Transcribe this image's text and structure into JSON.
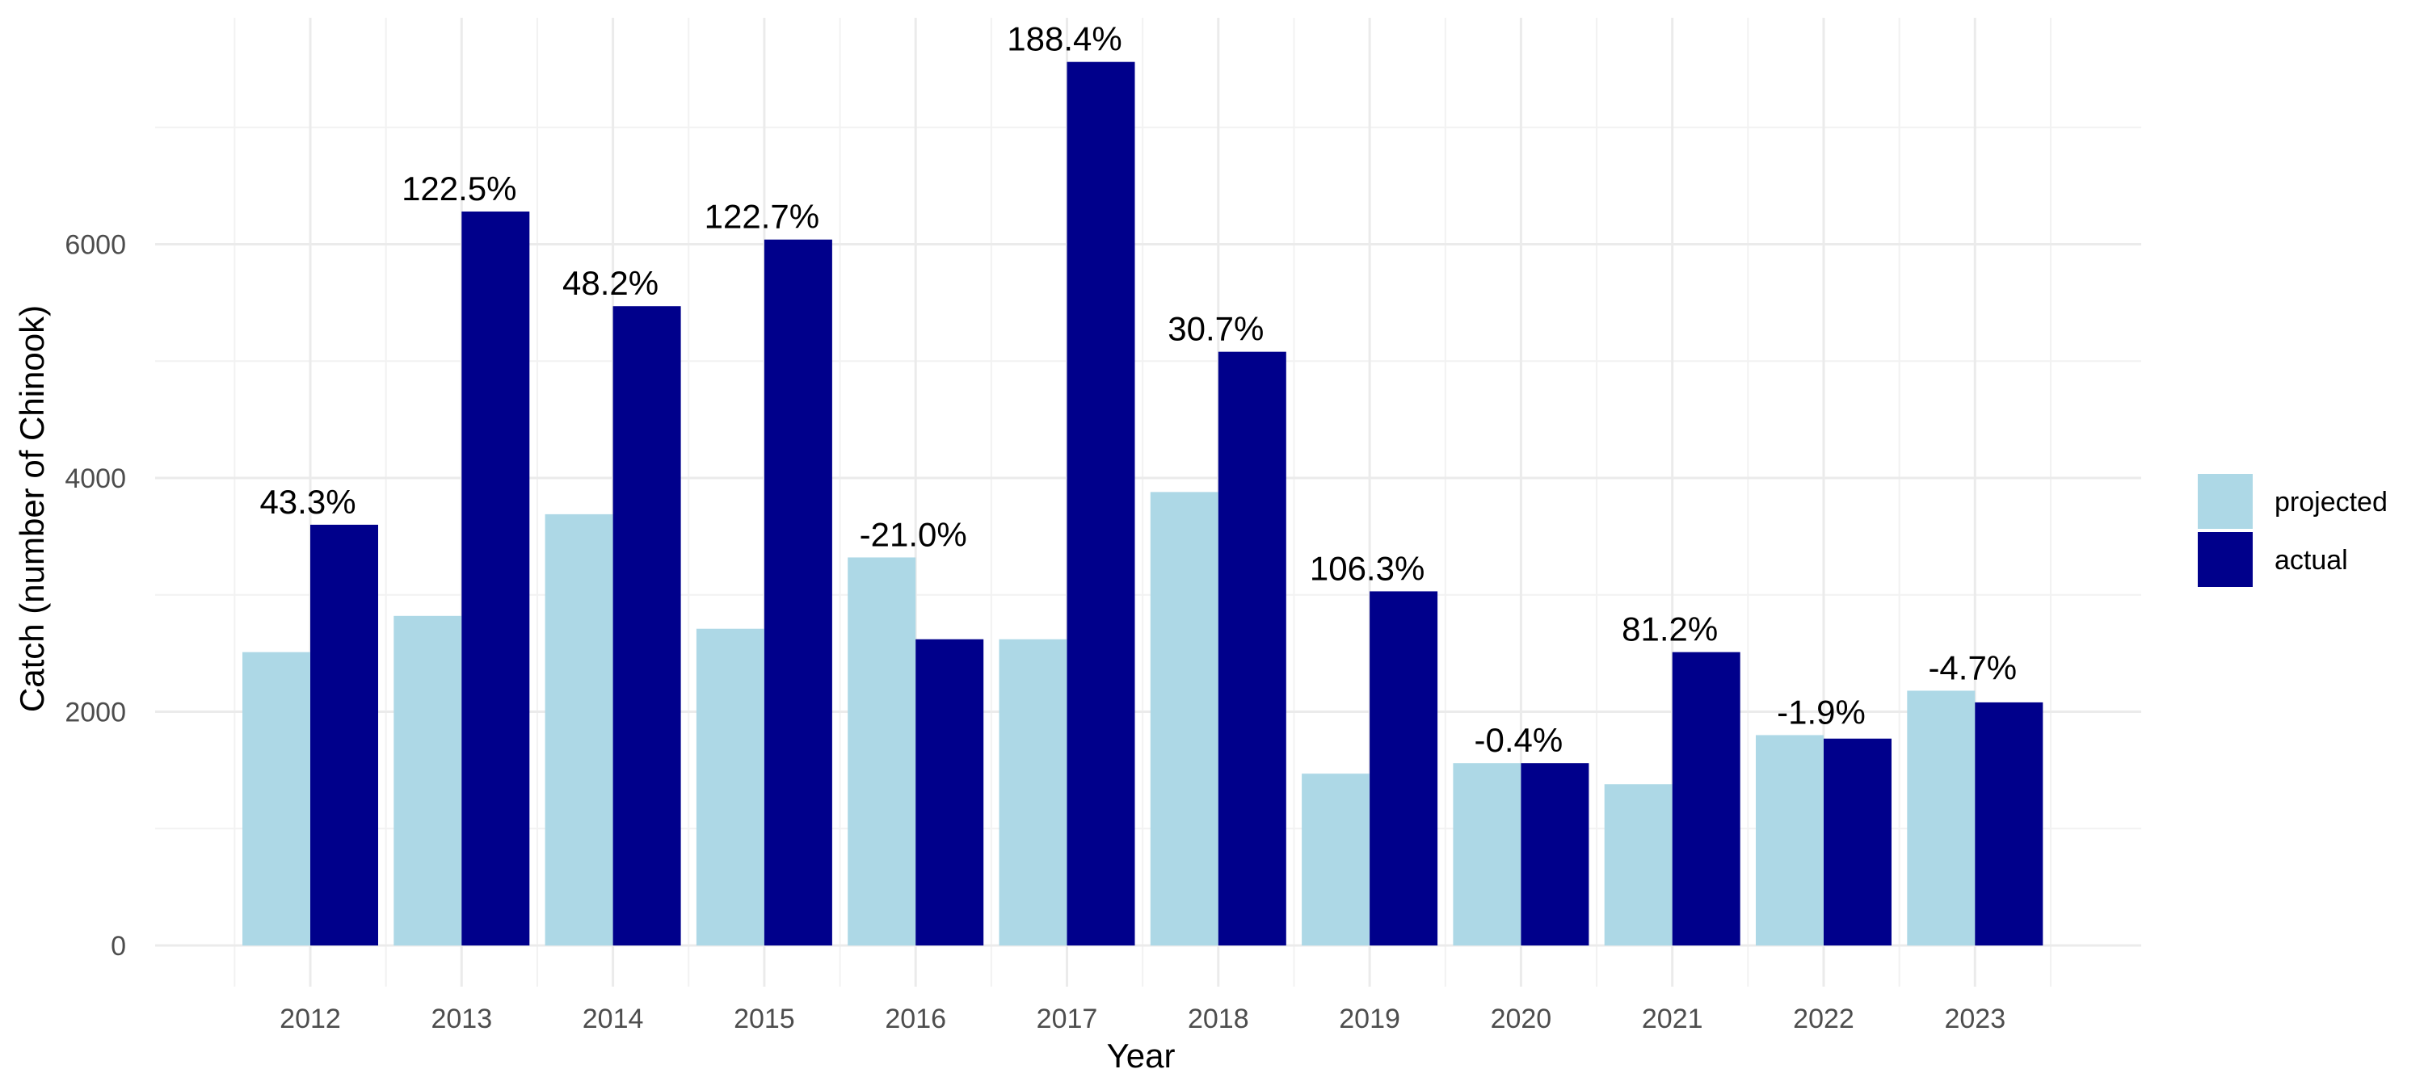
{
  "chart_data": {
    "type": "bar",
    "title": "",
    "xlabel": "Year",
    "ylabel": "Catch (number of Chinook)",
    "categories": [
      "2012",
      "2013",
      "2014",
      "2015",
      "2016",
      "2017",
      "2018",
      "2019",
      "2020",
      "2021",
      "2022",
      "2023"
    ],
    "series": [
      {
        "name": "projected",
        "color": "#add8e6",
        "values": [
          2510,
          2820,
          3690,
          2710,
          3320,
          2620,
          3880,
          1470,
          1560,
          1380,
          1800,
          2180
        ]
      },
      {
        "name": "actual",
        "color": "#00008b",
        "values": [
          3600,
          6280,
          5470,
          6040,
          2620,
          7560,
          5080,
          3030,
          1560,
          2510,
          1770,
          2080
        ]
      }
    ],
    "data_labels": [
      "43.3%",
      "122.5%",
      "48.2%",
      "122.7%",
      "-21.0%",
      "188.4%",
      "30.7%",
      "106.3%",
      "-0.4%",
      "81.2%",
      "-1.9%",
      "-4.7%"
    ],
    "ylim": [
      0,
      8000
    ],
    "yticks": [
      0,
      2000,
      4000,
      6000
    ],
    "yticks_labels": [
      "0",
      "2000",
      "4000",
      "6000"
    ],
    "grid": true,
    "legend_position": "right"
  }
}
